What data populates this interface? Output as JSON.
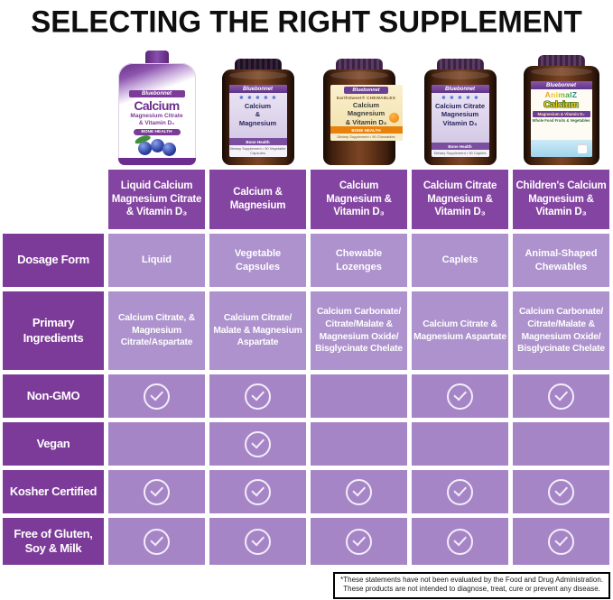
{
  "title": "SELECTING THE RIGHT SUPPLEMENT",
  "colors": {
    "row_header_purple": "#7c3a99",
    "column_header_purple": "#8445a2",
    "text_cell_purple": "#ad92cd",
    "check_cell_purple": "#a685c7",
    "checkmark_white": "#f3edf9",
    "amber_bottle": "#6b3a1c",
    "title_black": "#0e0e0e"
  },
  "chart_data": {
    "type": "table",
    "title": "SELECTING THE RIGHT SUPPLEMENT",
    "columns": [
      "Liquid Calcium Magnesium Citrate & Vitamin D₃",
      "Calcium & Magnesium",
      "Calcium Magnesium & Vitamin D₃",
      "Calcium Citrate Magnesium & Vitamin D₃",
      "Children's Calcium Magnesium & Vitamin D₃"
    ],
    "rows": [
      {
        "label": "Dosage Form",
        "type": "text",
        "values": [
          "Liquid",
          "Vegetable Capsules",
          "Chewable Lozenges",
          "Caplets",
          "Animal-Shaped Chewables"
        ]
      },
      {
        "label": "Primary Ingredients",
        "type": "text",
        "values": [
          "Calcium Citrate, & Magnesium Citrate/Aspartate",
          "Calcium Citrate/ Malate & Magnesium Aspartate",
          "Calcium Carbonate/ Citrate/Malate & Magnesium Oxide/ Bisglycinate Chelate",
          "Calcium Citrate & Magnesium Aspartate",
          "Calcium Carbonate/ Citrate/Malate & Magnesium Oxide/ Bisglycinate Chelate"
        ]
      },
      {
        "label": "Non-GMO",
        "type": "check",
        "values": [
          true,
          true,
          false,
          true,
          true
        ]
      },
      {
        "label": "Vegan",
        "type": "check",
        "values": [
          false,
          true,
          false,
          false,
          false
        ]
      },
      {
        "label": "Kosher Certified",
        "type": "check",
        "values": [
          true,
          true,
          true,
          true,
          true
        ]
      },
      {
        "label": "Free of Gluten, Soy & Milk",
        "type": "check",
        "values": [
          true,
          true,
          true,
          true,
          true
        ]
      }
    ]
  },
  "products": [
    {
      "bottle": {
        "brand": "Bluebonnet",
        "title": "Calcium",
        "line1": "Magnesium Citrate",
        "line2": "& Vitamin D₃",
        "badge": "BONE HEALTH"
      }
    },
    {
      "bottle": {
        "brand": "Bluebonnet",
        "title": "Calcium\n&\nMagnesium",
        "badge": "Bone Health",
        "foot": "Dietary Supplement • 90 Vegetable Capsules"
      }
    },
    {
      "bottle": {
        "brand": "Bluebonnet",
        "pre": "EarthSweet® CHEWABLES",
        "title": "Calcium\nMagnesium\n& Vitamin D₃",
        "badge": "BONE HEALTH",
        "foot": "Dietary Supplement • 90 Chewables"
      }
    },
    {
      "bottle": {
        "brand": "Bluebonnet",
        "title": "Calcium Citrate\nMagnesium\nVitamin D₃",
        "badge": "Bone Health",
        "foot": "Dietary Supplement • 90 Caplets"
      }
    },
    {
      "bottle": {
        "brand": "Bluebonnet",
        "pre": "AnimalZ",
        "title": "Calcium",
        "line1": "Magnesium & Vitamin D₃",
        "line2": "Whole Food Fruits & Vegetables"
      }
    }
  ],
  "footer": {
    "line1": "*These statements have not been evaluated by the Food and Drug Administration.",
    "line2": "These products are not intended to diagnose, treat, cure or prevent any disease."
  }
}
